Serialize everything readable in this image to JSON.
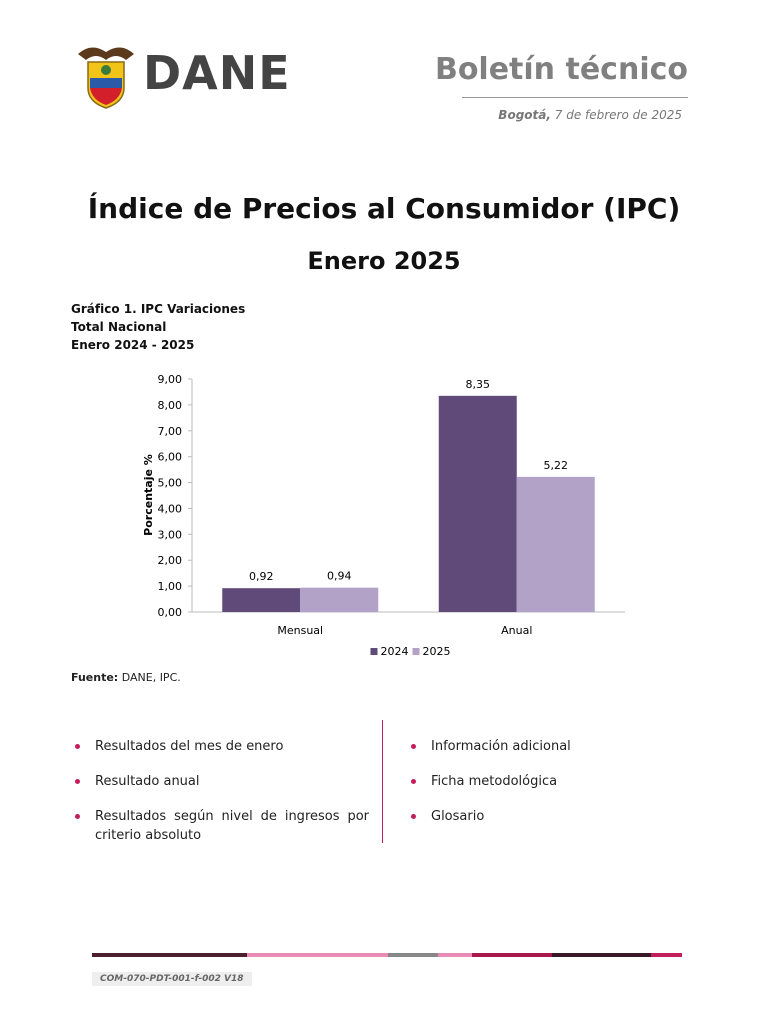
{
  "header": {
    "logo_text": "DANE",
    "title": "Boletín técnico",
    "place": "Bogotá,",
    "date": "7 de febrero de 2025"
  },
  "main_title": "Índice de Precios al Consumidor (IPC)",
  "subtitle": "Enero 2025",
  "chart_titles": [
    "Gráfico 1. IPC Variaciones",
    "Total Nacional",
    "Enero 2024 - 2025"
  ],
  "chart_data": {
    "type": "bar",
    "y_label": "Porcentaje %",
    "categories": [
      "Mensual",
      "Anual"
    ],
    "series": [
      {
        "name": "2024",
        "color": "#5f4a7a",
        "values": [
          0.92,
          8.35
        ],
        "value_labels": [
          "0,92",
          "8,35"
        ]
      },
      {
        "name": "2025",
        "color": "#b3a2c8",
        "values": [
          0.94,
          5.22
        ],
        "value_labels": [
          "0,94",
          "5,22"
        ]
      }
    ],
    "ylim": [
      0,
      9
    ],
    "yticks": [
      {
        "value": 0,
        "label": "0,00"
      },
      {
        "value": 1,
        "label": "1,00"
      },
      {
        "value": 2,
        "label": "2,00"
      },
      {
        "value": 3,
        "label": "3,00"
      },
      {
        "value": 4,
        "label": "4,00"
      },
      {
        "value": 5,
        "label": "5,00"
      },
      {
        "value": 6,
        "label": "6,00"
      },
      {
        "value": 7,
        "label": "7,00"
      },
      {
        "value": 8,
        "label": "8,00"
      },
      {
        "value": 9,
        "label": "9,00"
      }
    ],
    "grid": false,
    "legend": "bottom"
  },
  "source": {
    "label": "Fuente:",
    "text": "DANE, IPC."
  },
  "bullets_left": [
    "Resultados del mes de enero",
    "Resultado anual",
    "Resultados según nivel de ingresos por criterio absoluto"
  ],
  "bullets_right": [
    "Información adicional",
    "Ficha metodológica",
    "Glosario"
  ],
  "footer_code": "COM-070-PDT-001-f-002 V18"
}
